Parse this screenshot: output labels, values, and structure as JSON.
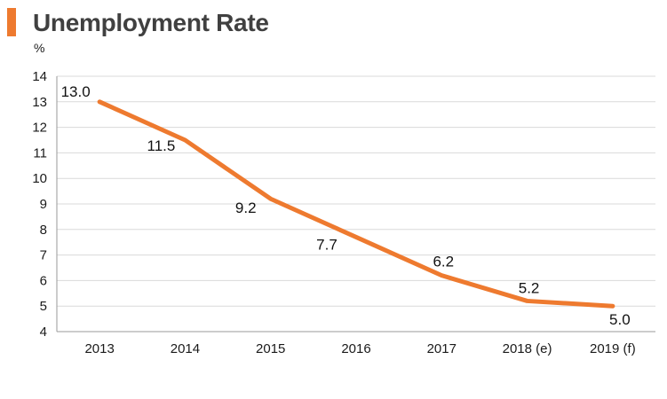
{
  "header": {
    "title": "Unemployment Rate",
    "accent_color": "#EE7A2F"
  },
  "chart_data": {
    "type": "line",
    "title": "Unemployment Rate",
    "ylabel": "%",
    "xlabel": "",
    "categories": [
      "2013",
      "2014",
      "2015",
      "2016",
      "2017",
      "2018 (e)",
      "2019 (f)"
    ],
    "series": [
      {
        "values": [
          13.0,
          11.5,
          9.2,
          7.7,
          6.2,
          5.2,
          5.0
        ],
        "labels": [
          "13.0",
          "11.5",
          "9.2",
          "7.7",
          "6.2",
          "5.2",
          "5.0"
        ],
        "color": "#EE7A2F"
      }
    ],
    "ylim": [
      4,
      14
    ],
    "yticks": [
      "4",
      "5",
      "6",
      "7",
      "8",
      "9",
      "10",
      "11",
      "12",
      "13",
      "14"
    ],
    "grid": true,
    "legend": "none"
  }
}
